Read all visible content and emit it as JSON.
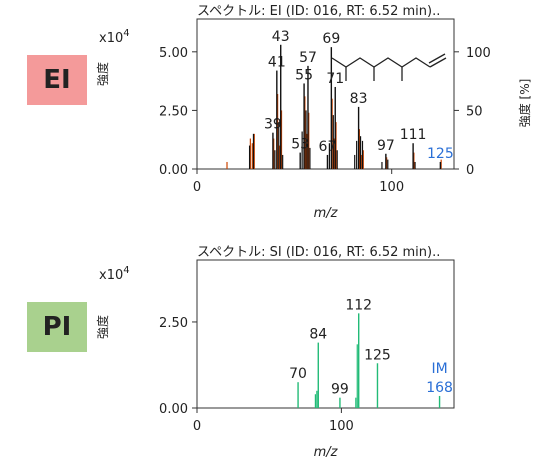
{
  "badges": {
    "ei": "EI",
    "pi": "PI"
  },
  "colors": {
    "ei_bar": "#111111",
    "ei_overlay": "#cc4400",
    "pi_bar": "#22bb77",
    "label": "#222222",
    "highlight_label": "#2a6fd6",
    "ei_badge": "#f49a9a",
    "pi_badge": "#a9d18e"
  },
  "chart_data": [
    {
      "type": "bar",
      "title": "スペクトル: EI (ID: 016, RT: 6.52 min)..",
      "xlabel": "m/z",
      "ylabel": "強度",
      "ylabel_right": "強度 [%]",
      "scale_label_base": "x10",
      "scale_label_exp": "4",
      "xlim": [
        0,
        132
      ],
      "ylim": [
        0,
        6.4
      ],
      "ylim_right": [
        0,
        128
      ],
      "xticks": [
        0,
        100
      ],
      "xtick_labels": [
        "0",
        "100"
      ],
      "yticks": [
        0,
        2.5,
        5.0
      ],
      "ytick_labels": [
        "0.00",
        "2.50",
        "5.00"
      ],
      "yticks_right": [
        0,
        50,
        100
      ],
      "ytick_labels_right": [
        "0",
        "50",
        "100"
      ],
      "structure": "branched alkene skeletal formula (inset)",
      "peaks": [
        {
          "mz": 39,
          "value": 1.55,
          "label": "39"
        },
        {
          "mz": 41,
          "value": 4.2,
          "label": "41"
        },
        {
          "mz": 43,
          "value": 5.3,
          "label": "43"
        },
        {
          "mz": 53,
          "value": 0.7,
          "label": "53"
        },
        {
          "mz": 55,
          "value": 3.65,
          "label": "55"
        },
        {
          "mz": 57,
          "value": 4.4,
          "label": "57"
        },
        {
          "mz": 67,
          "value": 0.6,
          "label": "67"
        },
        {
          "mz": 69,
          "value": 5.2,
          "label": "69"
        },
        {
          "mz": 71,
          "value": 3.5,
          "label": "71"
        },
        {
          "mz": 83,
          "value": 2.65,
          "label": "83"
        },
        {
          "mz": 97,
          "value": 0.65,
          "label": "97"
        },
        {
          "mz": 111,
          "value": 1.1,
          "label": "111"
        },
        {
          "mz": 125,
          "value": 0.3,
          "label": "125",
          "highlight": true
        }
      ],
      "minor_peaks": [
        {
          "mz": 27,
          "value": 1.0
        },
        {
          "mz": 29,
          "value": 1.5
        },
        {
          "mz": 40,
          "value": 0.8
        },
        {
          "mz": 42,
          "value": 2.0
        },
        {
          "mz": 44,
          "value": 0.6
        },
        {
          "mz": 54,
          "value": 1.6
        },
        {
          "mz": 56,
          "value": 2.5
        },
        {
          "mz": 58,
          "value": 0.9
        },
        {
          "mz": 68,
          "value": 1.1
        },
        {
          "mz": 70,
          "value": 2.3
        },
        {
          "mz": 72,
          "value": 0.8
        },
        {
          "mz": 81,
          "value": 0.6
        },
        {
          "mz": 82,
          "value": 1.2
        },
        {
          "mz": 84,
          "value": 1.4
        },
        {
          "mz": 85,
          "value": 1.2
        },
        {
          "mz": 95,
          "value": 0.3
        },
        {
          "mz": 98,
          "value": 0.4
        },
        {
          "mz": 112,
          "value": 0.3
        }
      ],
      "overlay_peaks": [
        {
          "mz": 15,
          "value": 0.3
        },
        {
          "mz": 27,
          "value": 1.3
        },
        {
          "mz": 28,
          "value": 1.1
        },
        {
          "mz": 29,
          "value": 1.5
        },
        {
          "mz": 39,
          "value": 1.3
        },
        {
          "mz": 41,
          "value": 3.2
        },
        {
          "mz": 42,
          "value": 1.0
        },
        {
          "mz": 43,
          "value": 2.5
        },
        {
          "mz": 55,
          "value": 3.1
        },
        {
          "mz": 56,
          "value": 1.5
        },
        {
          "mz": 57,
          "value": 2.4
        },
        {
          "mz": 69,
          "value": 3.0
        },
        {
          "mz": 70,
          "value": 1.3
        },
        {
          "mz": 71,
          "value": 2.0
        },
        {
          "mz": 83,
          "value": 1.7
        },
        {
          "mz": 84,
          "value": 0.6
        },
        {
          "mz": 85,
          "value": 0.8
        },
        {
          "mz": 97,
          "value": 0.5
        },
        {
          "mz": 111,
          "value": 0.7
        },
        {
          "mz": 125,
          "value": 0.4
        }
      ]
    },
    {
      "type": "bar",
      "title": "スペクトル: SI (ID: 016, RT: 6.52 min)..",
      "xlabel": "m/z",
      "ylabel": "強度",
      "scale_label_base": "x10",
      "scale_label_exp": "4",
      "xlim": [
        0,
        178
      ],
      "ylim": [
        0,
        4.3
      ],
      "xticks": [
        0,
        100
      ],
      "xtick_labels": [
        "0",
        "100"
      ],
      "yticks": [
        0,
        2.5
      ],
      "ytick_labels": [
        "0.00",
        "2.50"
      ],
      "peaks": [
        {
          "mz": 70,
          "value": 0.75,
          "label": "70"
        },
        {
          "mz": 84,
          "value": 1.9,
          "label": "84"
        },
        {
          "mz": 99,
          "value": 0.3,
          "label": "99"
        },
        {
          "mz": 112,
          "value": 2.75,
          "label": "112"
        },
        {
          "mz": 125,
          "value": 1.3,
          "label": "125"
        },
        {
          "mz": 168,
          "value": 0.35,
          "label": "168",
          "highlight": true,
          "annotation": "IM"
        }
      ],
      "minor_peaks": [
        {
          "mz": 82,
          "value": 0.4
        },
        {
          "mz": 83,
          "value": 0.5
        },
        {
          "mz": 110,
          "value": 0.3
        },
        {
          "mz": 111,
          "value": 1.85
        }
      ]
    }
  ]
}
